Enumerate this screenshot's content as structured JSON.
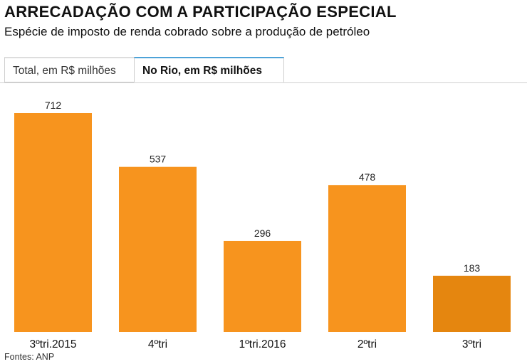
{
  "header": {
    "title": "ARRECADAÇÃO COM A PARTICIPAÇÃO ESPECIAL",
    "subtitle": "Espécie de imposto de renda cobrado sobre a produção de petróleo"
  },
  "tabs": [
    {
      "label": "Total, em R$ milhões",
      "active": false
    },
    {
      "label": "No Rio, em R$ milhões",
      "active": true
    }
  ],
  "source": "Fontes: ANP",
  "colors": {
    "bar": "#f7941e",
    "bar_highlight": "#e5860f",
    "tab_accent": "#4da3d8"
  },
  "chart_data": {
    "type": "bar",
    "categories": [
      "3ºtri.2015",
      "4ºtri",
      "1ºtri.2016",
      "2ºtri",
      "3ºtri"
    ],
    "values": [
      712,
      537,
      296,
      478,
      183
    ],
    "data_labels": [
      "712",
      "537",
      "296",
      "478",
      "183"
    ],
    "highlight_index": 4,
    "ylim": [
      0,
      712
    ],
    "grid": false,
    "legend": "none"
  }
}
